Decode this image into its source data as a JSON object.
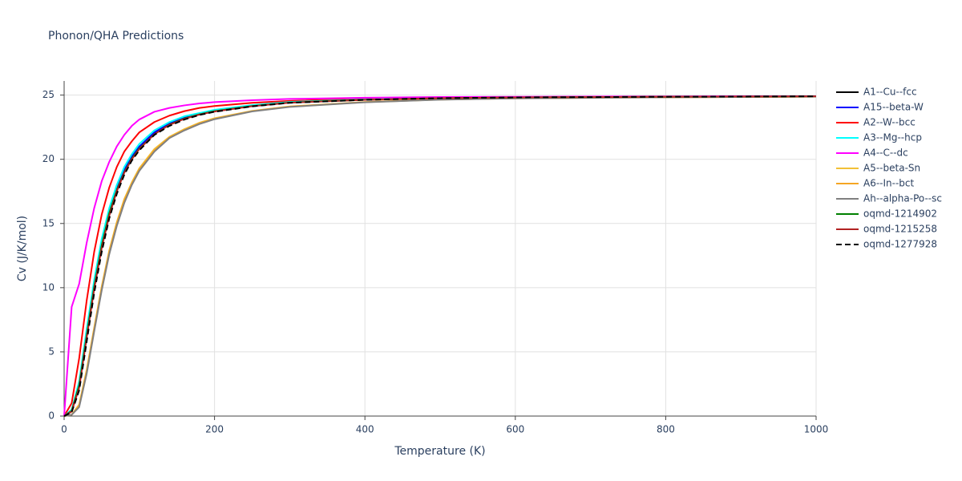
{
  "chart_data": {
    "type": "line",
    "title": "Phonon/QHA Predictions",
    "x_label": "Temperature (K)",
    "y_label": "Cv (J/K/mol)",
    "x": [
      0,
      10,
      20,
      30,
      40,
      50,
      60,
      70,
      80,
      90,
      100,
      120,
      140,
      160,
      180,
      200,
      250,
      300,
      400,
      500,
      600,
      800,
      1000
    ],
    "series": [
      {
        "name": "A1--Cu--fcc",
        "color": "#000000",
        "values": [
          0,
          0.4,
          2.4,
          6.4,
          10.2,
          13.4,
          15.9,
          17.7,
          19.1,
          20.1,
          20.9,
          22.0,
          22.75,
          23.2,
          23.5,
          23.75,
          24.15,
          24.42,
          24.64,
          24.76,
          24.82,
          24.87,
          24.9
        ]
      },
      {
        "name": "A15--beta-W",
        "color": "#0000ff",
        "values": [
          0,
          0.4,
          2.5,
          6.5,
          10.3,
          13.5,
          16.0,
          17.8,
          19.2,
          20.2,
          21.0,
          22.1,
          22.8,
          23.25,
          23.55,
          23.8,
          24.2,
          24.45,
          24.65,
          24.77,
          24.82,
          24.87,
          24.9
        ]
      },
      {
        "name": "A2--W--bcc",
        "color": "#ff0000",
        "values": [
          0,
          1.0,
          4.5,
          9.0,
          12.8,
          15.7,
          17.8,
          19.4,
          20.6,
          21.4,
          22.1,
          22.9,
          23.4,
          23.75,
          24.0,
          24.15,
          24.4,
          24.55,
          24.72,
          24.8,
          24.84,
          24.88,
          24.9
        ]
      },
      {
        "name": "A3--Mg--hcp",
        "color": "#00ffff",
        "values": [
          0,
          0.5,
          2.7,
          6.8,
          10.6,
          13.8,
          16.2,
          18.0,
          19.4,
          20.4,
          21.2,
          22.25,
          22.9,
          23.35,
          23.6,
          23.85,
          24.22,
          24.47,
          24.66,
          24.77,
          24.82,
          24.87,
          24.9
        ]
      },
      {
        "name": "A4--C--dc",
        "color": "#ff00ff",
        "values": [
          0,
          8.5,
          10.3,
          13.5,
          16.2,
          18.3,
          19.8,
          21.0,
          21.9,
          22.6,
          23.1,
          23.7,
          24.0,
          24.2,
          24.35,
          24.45,
          24.6,
          24.7,
          24.8,
          24.85,
          24.87,
          24.9,
          24.91
        ]
      },
      {
        "name": "A5--beta-Sn",
        "color": "#f2c037",
        "values": [
          0,
          0.1,
          0.9,
          3.6,
          6.9,
          10.1,
          12.9,
          15.1,
          16.9,
          18.2,
          19.3,
          20.8,
          21.75,
          22.35,
          22.85,
          23.2,
          23.77,
          24.12,
          24.46,
          24.66,
          24.75,
          24.83,
          24.88
        ]
      },
      {
        "name": "A6--In--bct",
        "color": "#f5a623",
        "values": [
          0,
          0.1,
          0.8,
          3.5,
          6.8,
          10.0,
          12.8,
          15.0,
          16.8,
          18.1,
          19.2,
          20.7,
          21.7,
          22.3,
          22.8,
          23.15,
          23.75,
          24.1,
          24.45,
          24.65,
          24.75,
          24.83,
          24.88
        ]
      },
      {
        "name": "Ah--alpha-Po--sc",
        "color": "#808080",
        "values": [
          0,
          0.1,
          0.7,
          3.3,
          6.6,
          9.8,
          12.6,
          14.8,
          16.6,
          18.0,
          19.1,
          20.6,
          21.65,
          22.25,
          22.75,
          23.12,
          23.73,
          24.08,
          24.44,
          24.64,
          24.74,
          24.83,
          24.88
        ]
      },
      {
        "name": "oqmd-1214902",
        "color": "#008000",
        "values": [
          0,
          0.4,
          2.4,
          6.3,
          10.1,
          13.3,
          15.8,
          17.6,
          19.0,
          20.05,
          20.85,
          21.95,
          22.7,
          23.18,
          23.5,
          23.75,
          24.15,
          24.42,
          24.64,
          24.76,
          24.82,
          24.87,
          24.9
        ]
      },
      {
        "name": "oqmd-1215258",
        "color": "#b22222",
        "values": [
          0,
          0.35,
          2.2,
          6.1,
          9.9,
          13.1,
          15.6,
          17.5,
          18.95,
          20.0,
          20.8,
          21.95,
          22.68,
          23.15,
          23.48,
          23.72,
          24.13,
          24.41,
          24.63,
          24.76,
          24.82,
          24.87,
          24.9
        ]
      },
      {
        "name": "oqmd-1277928",
        "color": "#000000",
        "dash": "dash",
        "values": [
          0,
          0.3,
          2.0,
          5.8,
          9.6,
          12.8,
          15.4,
          17.3,
          18.8,
          19.9,
          20.7,
          21.9,
          22.6,
          23.1,
          23.45,
          23.7,
          24.12,
          24.4,
          24.63,
          24.76,
          24.82,
          24.87,
          24.9
        ]
      }
    ],
    "xlim": [
      0,
      1000
    ],
    "xticks": [
      0,
      200,
      400,
      600,
      800,
      1000
    ],
    "ylim": [
      0,
      26.1
    ],
    "yticks": [
      0,
      5,
      10,
      15,
      20,
      25
    ],
    "grid": true,
    "legend": "right"
  }
}
